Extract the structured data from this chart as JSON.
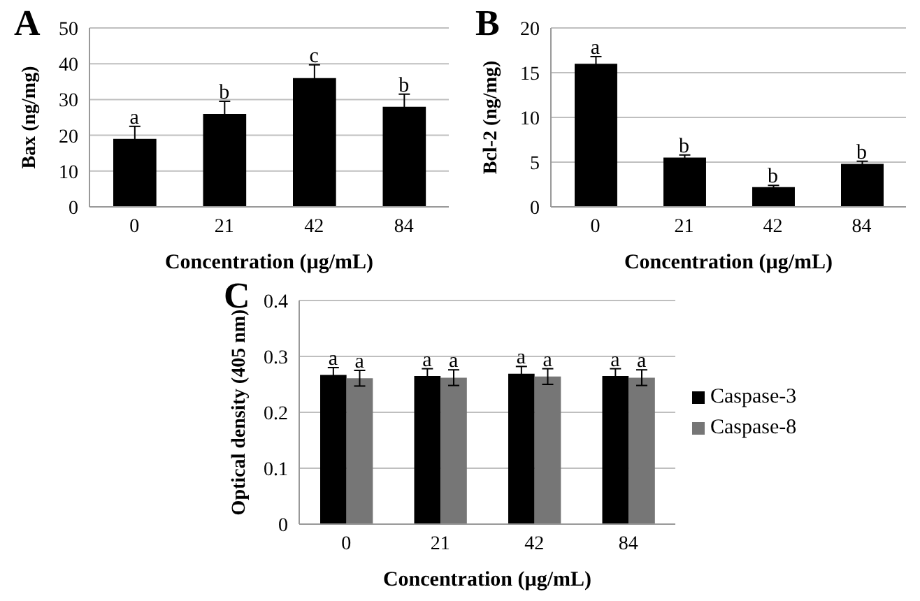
{
  "chart_data": [
    {
      "type": "bar",
      "title": "A",
      "xlabel": "Concentration (µg/mL)",
      "ylabel": "Bax (ng/mg)",
      "categories": [
        "0",
        "21",
        "42",
        "84"
      ],
      "values": [
        19,
        26,
        36,
        28
      ],
      "errors": [
        3.5,
        3.5,
        3.7,
        3.5
      ],
      "color": "#000000",
      "ylim": [
        0,
        50
      ],
      "yticks": [
        0,
        10,
        20,
        30,
        40,
        50
      ],
      "grid": "y",
      "annotations": [
        {
          "text": "a",
          "x": "0",
          "y": 19
        },
        {
          "text": "b",
          "x": "21",
          "y": 26
        },
        {
          "text": "c",
          "x": "42",
          "y": 36
        },
        {
          "text": "b",
          "x": "84",
          "y": 28
        }
      ]
    },
    {
      "type": "bar",
      "title": "B",
      "xlabel": "Concentration (µg/mL)",
      "ylabel": "Bcl-2 (ng/mg)",
      "categories": [
        "0",
        "21",
        "42",
        "84"
      ],
      "values": [
        16,
        5.5,
        2.2,
        4.8
      ],
      "errors": [
        0.8,
        0.3,
        0.2,
        0.3
      ],
      "color": "#000000",
      "ylim": [
        0,
        20
      ],
      "yticks": [
        0,
        5,
        10,
        15,
        20
      ],
      "grid": "y",
      "annotations": [
        {
          "text": "a",
          "x": "0",
          "y": 16
        },
        {
          "text": "b",
          "x": "21",
          "y": 5.5
        },
        {
          "text": "b",
          "x": "42",
          "y": 2.2
        },
        {
          "text": "b",
          "x": "84",
          "y": 4.8
        }
      ]
    },
    {
      "type": "bar",
      "title": "C",
      "xlabel": "Concentration (µg/mL)",
      "ylabel": "Optical density (405 nm)",
      "categories": [
        "0",
        "21",
        "42",
        "84"
      ],
      "ylim": [
        0,
        0.4
      ],
      "yticks": [
        0,
        0.1,
        0.2,
        0.3,
        0.4
      ],
      "grid": "y",
      "legend": "right",
      "series": [
        {
          "name": "Caspase-3",
          "color": "#000000",
          "values": [
            0.267,
            0.265,
            0.269,
            0.265
          ],
          "errors": [
            0.013,
            0.013,
            0.013,
            0.013
          ]
        },
        {
          "name": "Caspase-8",
          "color": "#767676",
          "values": [
            0.261,
            0.262,
            0.264,
            0.262
          ],
          "errors": [
            0.014,
            0.014,
            0.014,
            0.014
          ]
        }
      ],
      "annotations": [
        {
          "text": "a",
          "x": "0",
          "y": 0.267
        },
        {
          "text": "a",
          "x": "0",
          "y": 0.261
        },
        {
          "text": "a",
          "x": "21",
          "y": 0.265
        },
        {
          "text": "a",
          "x": "21",
          "y": 0.262
        },
        {
          "text": "a",
          "x": "42",
          "y": 0.269
        },
        {
          "text": "a",
          "x": "42",
          "y": 0.264
        },
        {
          "text": "a",
          "x": "84",
          "y": 0.265
        },
        {
          "text": "a",
          "x": "84",
          "y": 0.262
        }
      ]
    }
  ]
}
